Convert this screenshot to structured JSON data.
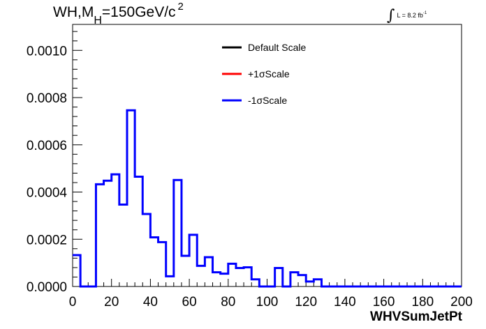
{
  "title": {
    "main": "WH,M",
    "sub": "H",
    "rest": "=150GeV/c",
    "sup": "2"
  },
  "lumi": {
    "integral": "∫",
    "text": "L = 8.2 fb",
    "sup": "-1"
  },
  "chart_data": {
    "type": "histogram",
    "xlabel": "WHVSumJetPt",
    "xlim": [
      0,
      200
    ],
    "ylim": [
      0,
      0.00111
    ],
    "xticks": [
      "0",
      "20",
      "40",
      "60",
      "80",
      "100",
      "120",
      "140",
      "160",
      "180",
      "200"
    ],
    "yticks": [
      "0.0000",
      "0.0002",
      "0.0004",
      "0.0006",
      "0.0008",
      "0.0010"
    ],
    "bin_width": 4,
    "x_start": 0,
    "legend": [
      {
        "label": "Default Scale",
        "color": "#000000"
      },
      {
        "label": "+1σScale",
        "color": "#ff0000"
      },
      {
        "label": "-1σScale",
        "color": "#0000ff"
      }
    ],
    "series": [
      {
        "name": "-1σScale",
        "color": "#0000ff",
        "values": [
          0.000133,
          0.0,
          0.0,
          0.000433,
          0.000448,
          0.000475,
          0.000347,
          0.000746,
          0.000465,
          0.000307,
          0.000208,
          0.000188,
          4.33e-05,
          0.000451,
          0.00013,
          0.000219,
          8.73e-05,
          0.000124,
          6.02e-05,
          5.42e-05,
          9.64e-05,
          7.83e-05,
          8.13e-05,
          3.01e-05,
          0.0,
          0.0,
          7.83e-05,
          0.0,
          6.02e-05,
          4.82e-05,
          2.11e-05,
          3.01e-05,
          0.0,
          0.0,
          0.0,
          0.0,
          0.0,
          0.0,
          0.0,
          0.0,
          0.0,
          0.0,
          0.0,
          0.0,
          0.0,
          0.0,
          0.0,
          0.0,
          0.0,
          0.0
        ]
      }
    ]
  }
}
